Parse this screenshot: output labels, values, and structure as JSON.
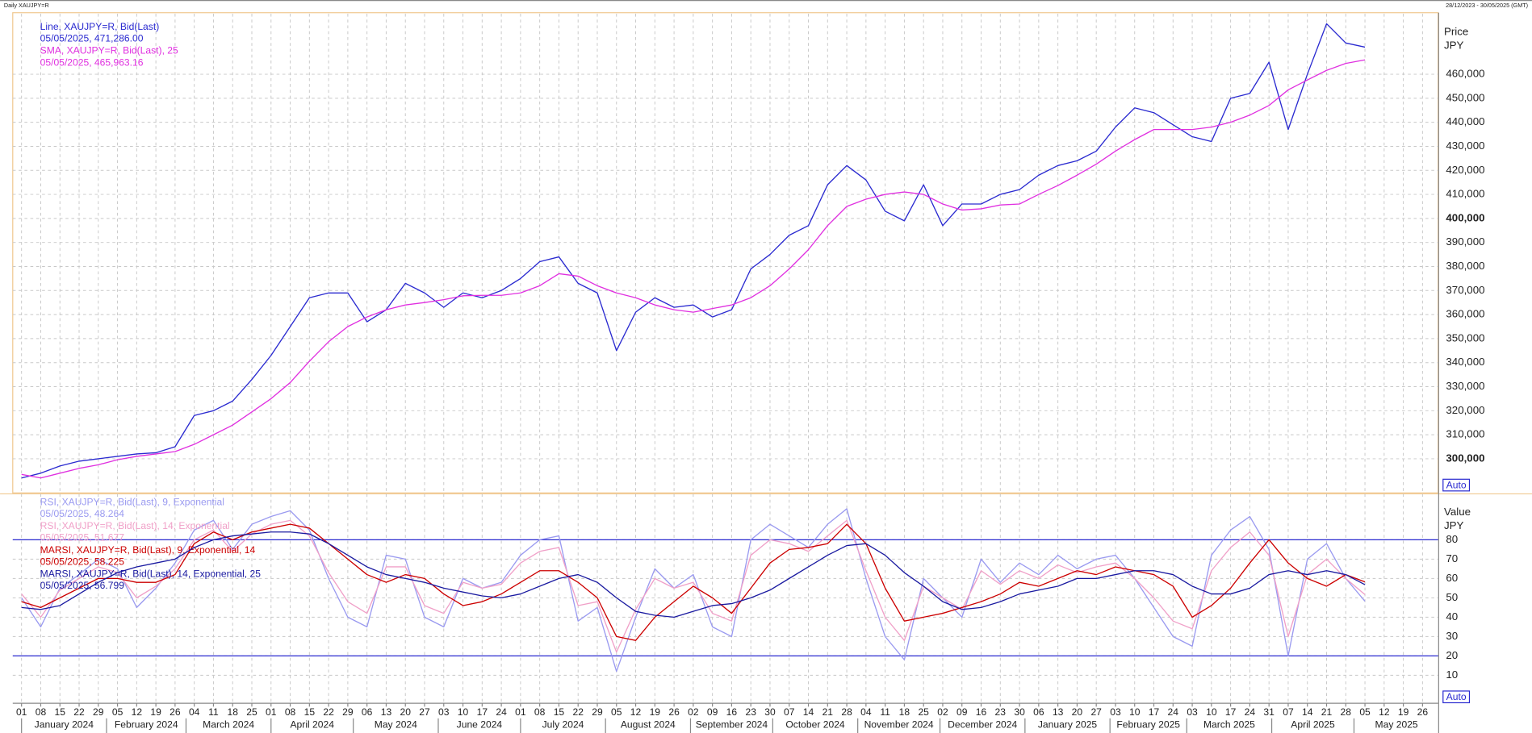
{
  "header": {
    "title": "Daily XAUJPY=R",
    "date_range": "28/12/2023 - 30/05/2025 (GMT)",
    "button": "Auto"
  },
  "chart_data": [
    {
      "type": "line",
      "y_axis_title": "Price",
      "y_axis_unit": "JPY",
      "ylim": [
        285800,
        485200
      ],
      "yticks": [
        {
          "value": 300000,
          "label": "300,000"
        },
        {
          "value": 310000,
          "label": "310,000"
        },
        {
          "value": 320000,
          "label": "320,000"
        },
        {
          "value": 330000,
          "label": "330,000"
        },
        {
          "value": 340000,
          "label": "340,000"
        },
        {
          "value": 350000,
          "label": "350,000"
        },
        {
          "value": 360000,
          "label": "360,000"
        },
        {
          "value": 370000,
          "label": "370,000"
        },
        {
          "value": 380000,
          "label": "380,000"
        },
        {
          "value": 390000,
          "label": "390,000"
        },
        {
          "value": 400000,
          "label": "400,000"
        },
        {
          "value": 410000,
          "label": "410,000"
        },
        {
          "value": 420000,
          "label": "420,000"
        },
        {
          "value": 430000,
          "label": "430,000"
        },
        {
          "value": 440000,
          "label": "440,000"
        },
        {
          "value": 450000,
          "label": "450,000"
        },
        {
          "value": 460000,
          "label": "460,000"
        }
      ],
      "grid": true,
      "series": [
        {
          "name": "Line, XAUJPY=R, Bid(Last)",
          "last_label": "05/05/2025, 471,286.00",
          "color": "#2a2ad0",
          "values": [
            292000,
            294000,
            297000,
            299000,
            300000,
            301000,
            302000,
            302500,
            305000,
            318000,
            320000,
            324000,
            333000,
            343000,
            355000,
            367000,
            369000,
            369000,
            357000,
            362000,
            373000,
            369000,
            363000,
            369000,
            367000,
            370000,
            375000,
            382000,
            384000,
            373000,
            369000,
            345000,
            361000,
            367000,
            363000,
            364000,
            359000,
            362000,
            379000,
            385000,
            393000,
            397000,
            414000,
            422000,
            416000,
            403000,
            399000,
            414000,
            397000,
            406000,
            406000,
            410000,
            412000,
            418000,
            422000,
            424000,
            428000,
            438000,
            446000,
            444000,
            439000,
            434000,
            432000,
            450000,
            452000,
            465000,
            437000,
            460000,
            481000,
            473000,
            471286,
            null,
            null,
            null
          ]
        },
        {
          "name": "SMA, XAUJPY=R, Bid(Last),  25",
          "last_label": "05/05/2025, 465,963.16",
          "color": "#e030e0",
          "values": [
            293500,
            292000,
            294000,
            296000,
            297500,
            299600,
            301000,
            302000,
            303000,
            306000,
            310000,
            314000,
            319500,
            325000,
            331700,
            340600,
            348700,
            355000,
            359000,
            362000,
            364000,
            365000,
            366200,
            367800,
            368000,
            368000,
            369000,
            372000,
            377000,
            376000,
            372000,
            369000,
            367000,
            364000,
            362000,
            361000,
            362500,
            364000,
            367000,
            372000,
            379000,
            387000,
            397000,
            405000,
            408000,
            410000,
            411000,
            410000,
            406000,
            403500,
            404000,
            405600,
            406000,
            410000,
            413700,
            418000,
            422600,
            428000,
            432800,
            437000,
            437000,
            437000,
            438000,
            440000,
            443000,
            447000,
            453500,
            457600,
            461600,
            464500,
            465963.16,
            null,
            null,
            null
          ]
        }
      ]
    },
    {
      "type": "line",
      "y_axis_title": "Value",
      "y_axis_unit": "JPY",
      "ylim": [
        -4.2,
        103.2
      ],
      "yticks": [
        10,
        20,
        30,
        40,
        50,
        60,
        70,
        80
      ],
      "reference_lines": [
        20,
        80
      ],
      "reference_color": "#2a2ad0",
      "grid": true,
      "categories": [
        "01",
        "08",
        "15",
        "22",
        "29",
        "05",
        "12",
        "19",
        "26",
        "04",
        "11",
        "18",
        "25",
        "01",
        "08",
        "15",
        "22",
        "29",
        "06",
        "13",
        "20",
        "27",
        "03",
        "10",
        "17",
        "24",
        "01",
        "08",
        "15",
        "22",
        "29",
        "05",
        "12",
        "19",
        "26",
        "02",
        "09",
        "16",
        "23",
        "30",
        "07",
        "14",
        "21",
        "28",
        "04",
        "11",
        "18",
        "25",
        "02",
        "09",
        "16",
        "23",
        "30",
        "06",
        "13",
        "20",
        "27",
        "03",
        "10",
        "17",
        "24",
        "03",
        "10",
        "17",
        "24",
        "31",
        "07",
        "14",
        "21",
        "28",
        "05",
        "12",
        "19",
        "26"
      ],
      "months": [
        "January 2024",
        "February 2024",
        "March 2024",
        "April 2024",
        "May 2024",
        "June 2024",
        "July 2024",
        "August 2024",
        "September 2024",
        "October 2024",
        "November 2024",
        "December 2024",
        "January 2025",
        "February 2025",
        "March 2025",
        "April 2025",
        "May 2025"
      ],
      "series": [
        {
          "name": "RSI, XAUJPY=R, Bid(Last),  9, Exponential",
          "last_label": "05/05/2025, 48.264",
          "color": "#9a9af0",
          "values": [
            50,
            35,
            55,
            62,
            70,
            65,
            45,
            55,
            68,
            85,
            90,
            75,
            88,
            92,
            95,
            85,
            60,
            40,
            35,
            72,
            70,
            40,
            35,
            60,
            55,
            58,
            72,
            80,
            82,
            38,
            45,
            12,
            40,
            65,
            55,
            62,
            35,
            30,
            80,
            88,
            82,
            76,
            88,
            96,
            60,
            30,
            18,
            60,
            50,
            40,
            70,
            58,
            68,
            62,
            72,
            65,
            70,
            72,
            60,
            45,
            30,
            25,
            72,
            85,
            92,
            75,
            20,
            70,
            78,
            60,
            48.264,
            null,
            null,
            null
          ]
        },
        {
          "name": "RSI, XAUJPY=R, Bid(Last),  14, Exponential",
          "last_label": "05/05/2025, 51.677",
          "color": "#f0a0c8",
          "values": [
            52,
            40,
            54,
            60,
            66,
            63,
            50,
            56,
            65,
            80,
            85,
            74,
            83,
            88,
            90,
            82,
            63,
            48,
            42,
            66,
            66,
            46,
            42,
            58,
            55,
            57,
            68,
            74,
            76,
            46,
            48,
            22,
            44,
            60,
            55,
            58,
            42,
            38,
            72,
            80,
            78,
            74,
            82,
            90,
            64,
            40,
            28,
            56,
            50,
            44,
            64,
            57,
            64,
            60,
            67,
            63,
            66,
            68,
            60,
            50,
            38,
            34,
            64,
            76,
            84,
            72,
            30,
            62,
            70,
            60,
            51.677,
            null,
            null,
            null
          ]
        },
        {
          "name": "MARSI, XAUJPY=R, Bid(Last),  9, Exponential, 14",
          "last_label": "05/05/2025, 58.225",
          "color": "#cc0000",
          "values": [
            48,
            45,
            50,
            55,
            60,
            60,
            58,
            58,
            62,
            78,
            84,
            80,
            84,
            86,
            88,
            86,
            78,
            70,
            62,
            58,
            62,
            60,
            52,
            46,
            48,
            52,
            58,
            64,
            64,
            58,
            50,
            30,
            28,
            40,
            48,
            56,
            50,
            42,
            55,
            68,
            75,
            76,
            78,
            88,
            78,
            55,
            38,
            40,
            42,
            45,
            48,
            52,
            58,
            56,
            60,
            64,
            62,
            66,
            64,
            62,
            56,
            40,
            46,
            55,
            68,
            80,
            68,
            60,
            56,
            62,
            58.225,
            null,
            null,
            null
          ]
        },
        {
          "name": "MARSI, XAUJPY=R, Bid(Last),  14, Exponential, 25",
          "last_label": "05/05/2025, 56.799",
          "color": "#1a1aa0",
          "values": [
            45,
            44,
            46,
            52,
            58,
            63,
            66,
            68,
            70,
            76,
            80,
            82,
            83,
            84,
            84,
            83,
            78,
            72,
            66,
            62,
            60,
            58,
            55,
            53,
            51,
            50,
            52,
            56,
            60,
            62,
            58,
            50,
            43,
            41,
            40,
            43,
            46,
            47,
            50,
            54,
            60,
            66,
            72,
            77,
            78,
            72,
            63,
            56,
            48,
            44,
            45,
            48,
            52,
            54,
            56,
            60,
            60,
            62,
            64,
            64,
            62,
            56,
            52,
            52,
            55,
            62,
            64,
            62,
            64,
            62,
            56.799,
            null,
            null,
            null
          ]
        }
      ]
    }
  ]
}
